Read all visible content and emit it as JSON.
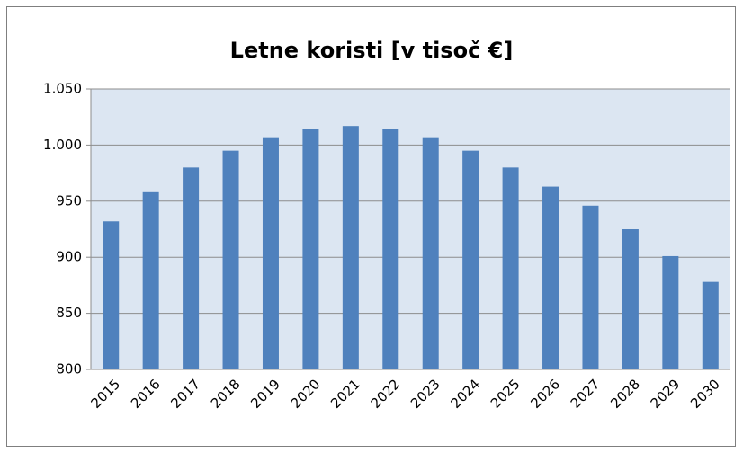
{
  "chart_data": {
    "type": "bar",
    "title": "Letne koristi [v tisoč €]",
    "categories": [
      "2015",
      "2016",
      "2017",
      "2018",
      "2019",
      "2020",
      "2021",
      "2022",
      "2023",
      "2024",
      "2025",
      "2026",
      "2027",
      "2028",
      "2029",
      "2030"
    ],
    "values": [
      932,
      958,
      980,
      995,
      1007,
      1014,
      1017,
      1014,
      1007,
      995,
      980,
      963,
      946,
      925,
      901,
      878
    ],
    "color": "#4f81bd",
    "ylim": [
      800,
      1050
    ],
    "yticks": [
      800,
      850,
      900,
      950,
      {
        "value": 1000,
        "label": "1.000"
      },
      {
        "value": 1050,
        "label": "1.050"
      }
    ],
    "grid": true
  }
}
